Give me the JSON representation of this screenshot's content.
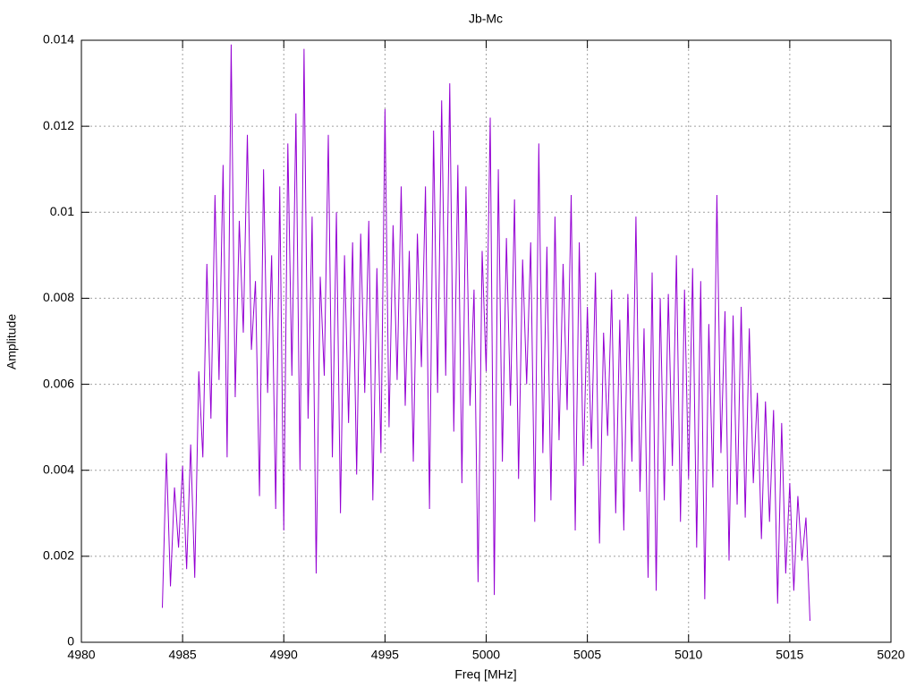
{
  "chart_data": {
    "type": "line",
    "title": "Jb-Mc",
    "xlabel": "Freq [MHz]",
    "ylabel": "Amplitude",
    "xlim": [
      4980,
      5020
    ],
    "xticks": [
      4980,
      4985,
      4990,
      4995,
      5000,
      5005,
      5010,
      5015,
      5020
    ],
    "ylim": [
      0,
      0.014
    ],
    "yticks": [
      0,
      0.002,
      0.004,
      0.006,
      0.008,
      0.01,
      0.012,
      0.014
    ],
    "grid": true,
    "series": [
      {
        "color": "#9400d3",
        "x": [
          4984,
          4984.2,
          4984.4,
          4984.6,
          4984.8,
          4985,
          4985.2,
          4985.4,
          4985.6,
          4985.8,
          4986,
          4986.2,
          4986.4,
          4986.6,
          4986.8,
          4987,
          4987.2,
          4987.4,
          4987.6,
          4987.8,
          4988,
          4988.2,
          4988.4,
          4988.6,
          4988.8,
          4989,
          4989.2,
          4989.4,
          4989.6,
          4989.8,
          4990,
          4990.2,
          4990.4,
          4990.6,
          4990.8,
          4991,
          4991.2,
          4991.4,
          4991.6,
          4991.8,
          4992,
          4992.2,
          4992.4,
          4992.6,
          4992.8,
          4993,
          4993.2,
          4993.4,
          4993.6,
          4993.8,
          4994,
          4994.2,
          4994.4,
          4994.6,
          4994.8,
          4995,
          4995.2,
          4995.4,
          4995.6,
          4995.8,
          4996,
          4996.2,
          4996.4,
          4996.6,
          4996.8,
          4997,
          4997.2,
          4997.4,
          4997.6,
          4997.8,
          4998,
          4998.2,
          4998.4,
          4998.6,
          4998.8,
          4999,
          4999.2,
          4999.4,
          4999.6,
          4999.8,
          5000,
          5000.2,
          5000.4,
          5000.6,
          5000.8,
          5001,
          5001.2,
          5001.4,
          5001.6,
          5001.8,
          5002,
          5002.2,
          5002.4,
          5002.6,
          5002.8,
          5003,
          5003.2,
          5003.4,
          5003.6,
          5003.8,
          5004,
          5004.2,
          5004.4,
          5004.6,
          5004.8,
          5005,
          5005.2,
          5005.4,
          5005.6,
          5005.8,
          5006,
          5006.2,
          5006.4,
          5006.6,
          5006.8,
          5007,
          5007.2,
          5007.4,
          5007.6,
          5007.8,
          5008,
          5008.2,
          5008.4,
          5008.6,
          5008.8,
          5009,
          5009.2,
          5009.4,
          5009.6,
          5009.8,
          5010,
          5010.2,
          5010.4,
          5010.6,
          5010.8,
          5011,
          5011.2,
          5011.4,
          5011.6,
          5011.8,
          5012,
          5012.2,
          5012.4,
          5012.6,
          5012.8,
          5013,
          5013.2,
          5013.4,
          5013.6,
          5013.8,
          5014,
          5014.2,
          5014.4,
          5014.6,
          5014.8,
          5015,
          5015.2,
          5015.4,
          5015.6,
          5015.8,
          5016
        ],
        "values": [
          0.0008,
          0.0044,
          0.0013,
          0.0036,
          0.0022,
          0.0041,
          0.0017,
          0.0046,
          0.0015,
          0.0063,
          0.0043,
          0.0088,
          0.0052,
          0.0104,
          0.0061,
          0.0111,
          0.0043,
          0.0139,
          0.0057,
          0.0098,
          0.0072,
          0.0118,
          0.0068,
          0.0084,
          0.0034,
          0.011,
          0.0058,
          0.009,
          0.0031,
          0.0106,
          0.0026,
          0.0116,
          0.0062,
          0.0123,
          0.004,
          0.0138,
          0.0052,
          0.0099,
          0.0016,
          0.0085,
          0.0062,
          0.0118,
          0.0043,
          0.01,
          0.003,
          0.009,
          0.0051,
          0.0093,
          0.0039,
          0.0095,
          0.0058,
          0.0098,
          0.0033,
          0.0087,
          0.0044,
          0.0124,
          0.005,
          0.0097,
          0.0061,
          0.0106,
          0.0055,
          0.0091,
          0.0042,
          0.0095,
          0.0064,
          0.0106,
          0.0031,
          0.0119,
          0.0058,
          0.0126,
          0.0062,
          0.013,
          0.0049,
          0.0111,
          0.0037,
          0.0106,
          0.0055,
          0.0082,
          0.0014,
          0.0091,
          0.0063,
          0.0122,
          0.0011,
          0.011,
          0.0042,
          0.0094,
          0.0055,
          0.0103,
          0.0038,
          0.0089,
          0.006,
          0.0093,
          0.0028,
          0.0116,
          0.0044,
          0.0092,
          0.0033,
          0.0099,
          0.0047,
          0.0088,
          0.0054,
          0.0104,
          0.0026,
          0.0093,
          0.0041,
          0.0078,
          0.0045,
          0.0086,
          0.0023,
          0.0072,
          0.0048,
          0.0082,
          0.003,
          0.0075,
          0.0026,
          0.0081,
          0.0042,
          0.0099,
          0.0035,
          0.0073,
          0.0015,
          0.0086,
          0.0012,
          0.008,
          0.0033,
          0.0081,
          0.0041,
          0.009,
          0.0028,
          0.0082,
          0.0038,
          0.0087,
          0.0022,
          0.0084,
          0.001,
          0.0074,
          0.0036,
          0.0104,
          0.0044,
          0.0077,
          0.0019,
          0.0076,
          0.0032,
          0.0078,
          0.0029,
          0.0073,
          0.0037,
          0.0058,
          0.0024,
          0.0056,
          0.0028,
          0.0054,
          0.0009,
          0.0051,
          0.0016,
          0.0037,
          0.0012,
          0.0034,
          0.0019,
          0.0029,
          0.0005
        ]
      }
    ]
  }
}
